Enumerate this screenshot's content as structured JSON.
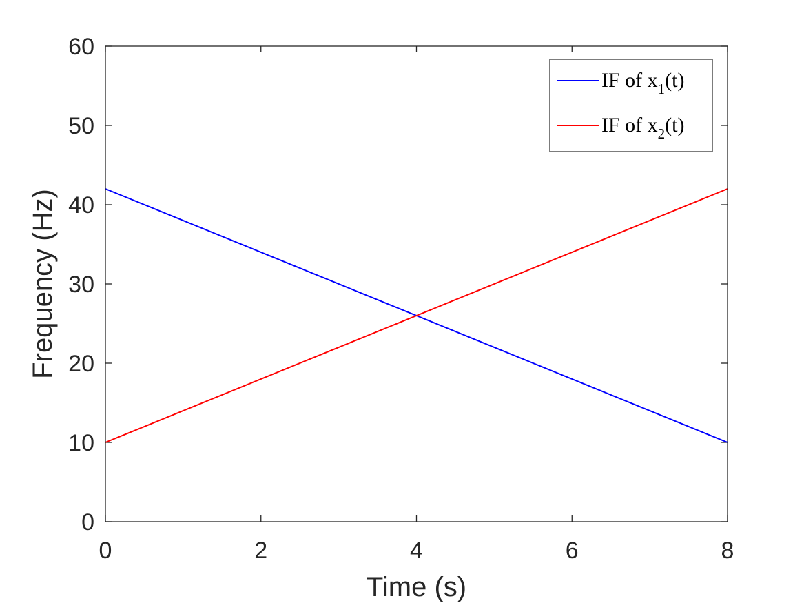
{
  "chart_data": {
    "type": "line",
    "title": "",
    "xlabel": "Time (s)",
    "ylabel": "Frequency (Hz)",
    "xlim": [
      0,
      8
    ],
    "ylim": [
      0,
      60
    ],
    "xticks": [
      0,
      2,
      4,
      6,
      8
    ],
    "yticks": [
      0,
      10,
      20,
      30,
      40,
      50,
      60
    ],
    "grid": false,
    "legend_position": "top-right",
    "series": [
      {
        "name": "IF of x1(t)",
        "legend": {
          "prefix": "IF of x",
          "subscript": "1",
          "suffix": "(t)"
        },
        "color": "#0000ff",
        "x": [
          0,
          8
        ],
        "y": [
          42,
          10
        ]
      },
      {
        "name": "IF of x2(t)",
        "legend": {
          "prefix": "IF of x",
          "subscript": "2",
          "suffix": "(t)"
        },
        "color": "#ff0000",
        "x": [
          0,
          8
        ],
        "y": [
          10,
          42
        ]
      }
    ]
  }
}
